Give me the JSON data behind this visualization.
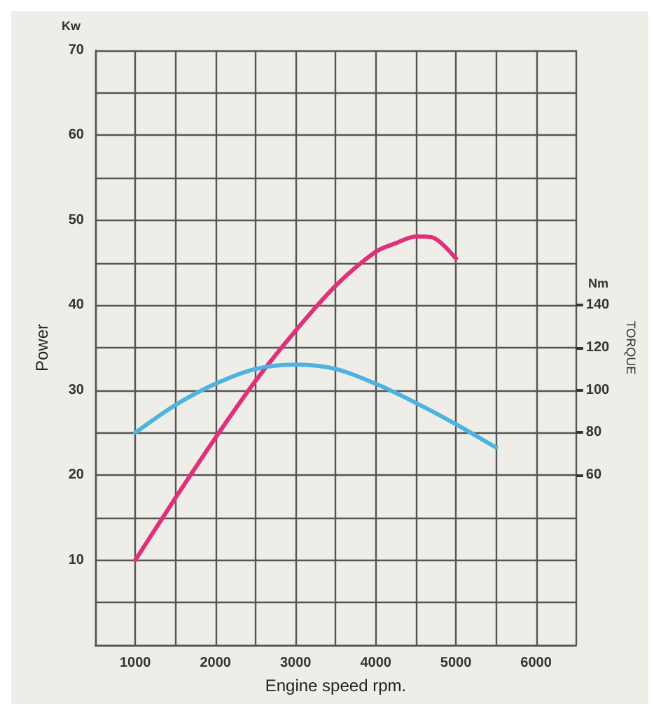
{
  "chart_data": {
    "type": "line",
    "xlabel": "Engine speed rpm.",
    "ylabel": "Power",
    "y2label": "TORQUE",
    "annotations": [
      "Kw",
      "Nm"
    ],
    "x": [
      1000,
      1500,
      2000,
      2500,
      3000,
      3500,
      4000,
      4250,
      4500,
      4700,
      5000
    ],
    "series": [
      {
        "color": "#e0307a",
        "values": [
          10,
          17.3,
          24.4,
          31.1,
          37,
          42.3,
          46.3,
          47.3,
          48.1,
          48,
          45.5
        ]
      },
      {
        "color": "#4fb3e0",
        "axis": "y2",
        "x": [
          1000,
          1500,
          2000,
          2500,
          3000,
          3500,
          4000,
          4500,
          5000,
          5500
        ],
        "values": [
          80,
          93,
          103,
          110,
          112,
          110,
          103,
          94,
          84,
          73
        ]
      }
    ],
    "xlim": [
      500,
      6500
    ],
    "xticks": [
      {
        "value": 500,
        "label": null
      },
      1000,
      {
        "value": 1500,
        "label": null
      },
      2000,
      {
        "value": 2500,
        "label": null
      },
      3000,
      {
        "value": 3500,
        "label": null
      },
      4000,
      {
        "value": 4500,
        "label": null
      },
      5000,
      {
        "value": 5500,
        "label": null
      },
      6000,
      {
        "value": 6500,
        "label": null
      }
    ],
    "ylim": [
      0,
      70
    ],
    "yticks": [
      {
        "value": 0,
        "label": null
      },
      {
        "value": 5,
        "label": null
      },
      10,
      {
        "value": 15,
        "label": null
      },
      20,
      {
        "value": 25,
        "label": null
      },
      30,
      {
        "value": 35,
        "label": null
      },
      40,
      {
        "value": 45,
        "label": null
      },
      50,
      {
        "value": 55,
        "label": null
      },
      60,
      {
        "value": 65,
        "label": null
      },
      70
    ],
    "y2lim": [
      -20,
      260
    ],
    "y2ticks": [
      60,
      80,
      100,
      120,
      140
    ],
    "grid": true,
    "marker": "none",
    "line_style": "solid"
  }
}
